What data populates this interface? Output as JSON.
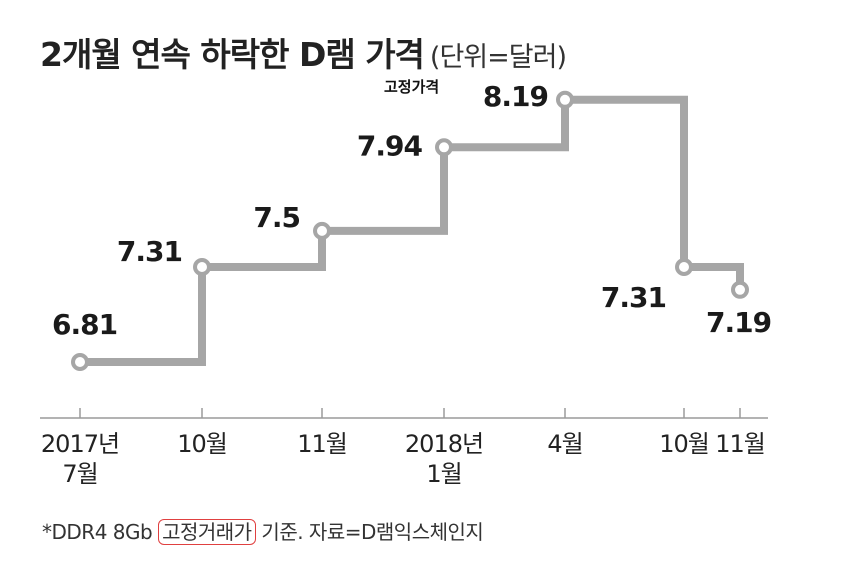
{
  "title": "2개월 연속 하락한 D램 가격",
  "unit": "(단위=달러)",
  "annotation": "고정가격",
  "footnote": {
    "prefix": "*DDR4 8Gb ",
    "highlight": "고정거래가",
    "suffix": " 기준. 자료=D램익스체인지"
  },
  "colors": {
    "line": "#a6a6a6",
    "axis": "#9a9a9a",
    "highlight_box": "#e04040"
  },
  "chart_data": {
    "type": "line",
    "step": true,
    "title": "2개월 연속 하락한 D램 가격",
    "ylabel": "",
    "xlabel": "",
    "unit": "달러",
    "categories": [
      "2017년 7월",
      "10월",
      "11월",
      "2018년 1월",
      "4월",
      "10월",
      "11월"
    ],
    "tick_labels": [
      [
        "2017년",
        "7월"
      ],
      [
        "10월"
      ],
      [
        "11월"
      ],
      [
        "2018년",
        "1월"
      ],
      [
        "4월"
      ],
      [
        "10월"
      ],
      [
        "11월"
      ]
    ],
    "values": [
      6.81,
      7.31,
      7.5,
      7.94,
      8.19,
      7.31,
      7.19
    ],
    "value_labels": [
      "6.81",
      "7.31",
      "7.5",
      "7.94",
      "8.19",
      "7.31",
      "7.19"
    ],
    "grid": false,
    "legend": "none"
  }
}
